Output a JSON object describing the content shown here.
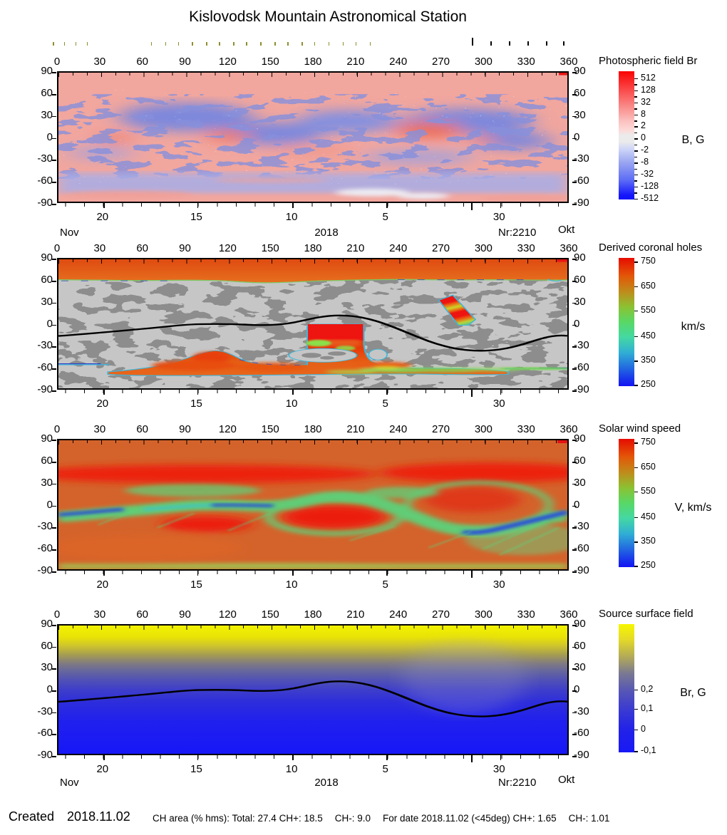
{
  "title": "Kislovodsk Mountain Astronomical Station",
  "axes": {
    "lon_ticks": [
      0,
      30,
      60,
      90,
      120,
      150,
      180,
      210,
      240,
      270,
      300,
      330,
      360
    ],
    "lat_ticks": [
      90,
      60,
      30,
      0,
      -30,
      -60,
      -90
    ],
    "date_ticks": [
      {
        "label": "20",
        "lon": 32
      },
      {
        "label": "15",
        "lon": 98
      },
      {
        "label": "10",
        "lon": 165
      },
      {
        "label": "5",
        "lon": 231
      },
      {
        "label": "30",
        "lon": 311
      }
    ],
    "month_tick_lon": 291,
    "left_month": "Nov",
    "year": "2018",
    "rotation": "Nr:2210",
    "right_month": "Okt"
  },
  "observation_ticks": {
    "olive_lons": [
      -3,
      5,
      13,
      21,
      66,
      76,
      85,
      95,
      105,
      114,
      124,
      133,
      143,
      153,
      162,
      172,
      181,
      191,
      201,
      210,
      220
    ],
    "black_lons": [
      292,
      305,
      318,
      331,
      344,
      356
    ],
    "tall_black_lon": 292
  },
  "panels": [
    {
      "name": "photospheric-field",
      "colorbar_title": "Photospheric field Br",
      "unit": "B, G",
      "colorbar": {
        "colors": [
          "#fa0404 0%",
          "#fb4242 13%",
          "#f98886 27%",
          "#fbc2c0 39%",
          "#fcdad8 46%",
          "#ebebeb 50%",
          "#ebebeb 55%",
          "#ccd4f8 61%",
          "#9aa6f0 71%",
          "#5c6cf6 85%",
          "#1414fb 97%"
        ],
        "ticks": [
          {
            "label": "512",
            "pct": 5.5
          },
          {
            "label": "128",
            "pct": 14.9
          },
          {
            "label": "32",
            "pct": 24.3
          },
          {
            "label": "8",
            "pct": 33.7
          },
          {
            "label": "2",
            "pct": 43.0
          },
          {
            "label": "0",
            "pct": 52.4
          },
          {
            "label": "-2",
            "pct": 61.8
          },
          {
            "label": "-8",
            "pct": 71.2
          },
          {
            "label": "-32",
            "pct": 80.5
          },
          {
            "label": "-128",
            "pct": 89.9
          },
          {
            "label": "-512",
            "pct": 99.3
          }
        ]
      }
    },
    {
      "name": "derived-coronal-holes",
      "colorbar_title": "Derived coronal holes",
      "unit": "km/s",
      "colorbar": {
        "colors": [
          "#e60c00 0%",
          "#e35708 14%",
          "#c08b1a 26%",
          "#8cc132 38%",
          "#58d866 50%",
          "#44d8a4 62%",
          "#30aed4 74%",
          "#2162e2 87%",
          "#1212f2 100%"
        ],
        "ticks": [
          {
            "label": "750",
            "pct": 3
          },
          {
            "label": "650",
            "pct": 22
          },
          {
            "label": "550",
            "pct": 41
          },
          {
            "label": "450",
            "pct": 61
          },
          {
            "label": "350",
            "pct": 80
          },
          {
            "label": "250",
            "pct": 99
          }
        ]
      }
    },
    {
      "name": "solar-wind-speed",
      "colorbar_title": "Solar wind speed",
      "unit": "V, km/s",
      "colorbar": {
        "colors": [
          "#e60c00 0%",
          "#e35708 14%",
          "#c08b1a 26%",
          "#8cc132 38%",
          "#58d866 50%",
          "#44d8a4 62%",
          "#30aed4 74%",
          "#2162e2 87%",
          "#1212f2 100%"
        ],
        "ticks": [
          {
            "label": "750",
            "pct": 3
          },
          {
            "label": "650",
            "pct": 22
          },
          {
            "label": "550",
            "pct": 41
          },
          {
            "label": "450",
            "pct": 61
          },
          {
            "label": "350",
            "pct": 80
          },
          {
            "label": "250",
            "pct": 99
          }
        ]
      }
    },
    {
      "name": "source-surface-field",
      "colorbar_title": "Source surface field",
      "unit": "Br, G",
      "colorbar": {
        "colors": [
          "#f6f600 0%",
          "#e4da28 12%",
          "#b0a85a 26%",
          "#7c7a90 38%",
          "#5656b6 52%",
          "#3838d4 68%",
          "#2222e8 82%",
          "#1818f6 100%"
        ],
        "ticks": [
          {
            "label": "0,2",
            "pct": 51
          },
          {
            "label": "0,1",
            "pct": 66
          },
          {
            "label": "0",
            "pct": 82
          },
          {
            "label": "-0,1",
            "pct": 99
          }
        ]
      }
    }
  ],
  "footer": {
    "created_label": "Created",
    "created_date": "2018.11.02",
    "stats": [
      "CH area (% hms): Total: 27.4 CH+: 18.5",
      "CH-: 9.0",
      "For date 2018.11.02 (<45deg) CH+: 1.65",
      "CH-: 1.01"
    ]
  },
  "chart_data": [
    {
      "type": "heatmap",
      "panel": "Photospheric field Br",
      "x_range": [
        0,
        360
      ],
      "y_range": [
        -90,
        90
      ],
      "x_ticks_top": [
        0,
        30,
        60,
        90,
        120,
        150,
        180,
        210,
        240,
        270,
        300,
        330,
        360
      ],
      "y_ticks": [
        90,
        60,
        30,
        0,
        -30,
        -60,
        -90
      ],
      "x_ticks_bottom_dates": [
        "20",
        "15",
        "10",
        "5",
        "30"
      ],
      "colorbar_unit": "B, G",
      "colorbar_ticks": [
        512,
        128,
        32,
        8,
        2,
        0,
        -2,
        -8,
        -32,
        -128,
        -512
      ],
      "scale": "symmetric log; red = positive field, blue = negative field, white near 0",
      "description": "Mottled synoptic map for Carrington rotation 2210 (20 Nov 2018 back to 30 Okt 2018). Weak positive (pink) field above +60 and at the very south edge; negative (blue) patches dominate mid-latitudes, strongest near lon 75-105 lat 10-40, lon 130-160 lat -10..20, lon 280-340 lat -5..40; smooth negative band near lat -55..-75; bright positive spots near lon 120 lat 0 and lon 255-270 lat 5."
    },
    {
      "type": "heatmap",
      "panel": "Derived coronal holes",
      "x_range": [
        0,
        360
      ],
      "y_range": [
        -90,
        90
      ],
      "colorbar_unit": "km/s",
      "colorbar_ticks": [
        750,
        650,
        550,
        450,
        350,
        250
      ],
      "features": [
        "north polar coronal hole above about +62 deg (orange, ~700 km/s)",
        "south polar coronal hole band below about -55 deg between lon 35 and 320, bulging up to lat -36 near lon 108",
        "equatorward extension at lon 176-216 reaching lat -3 (bright red, ~750 km/s)",
        "isolated elongated hole at lon 268-295, lat 0 to +35 (red/yellow/green stripes)",
        "small hole fragment at lon 355, lat 90",
        "quiet Sun light gray, closed-field mottling dark gray, cyan/blue contour outlines, green fringes near lat -60 at lon 200-310"
      ],
      "neutral_line": [
        [
          0,
          -17
        ],
        [
          30,
          -12
        ],
        [
          60,
          -7
        ],
        [
          90,
          -1
        ],
        [
          120,
          0
        ],
        [
          150,
          -2
        ],
        [
          180,
          8
        ],
        [
          195,
          12
        ],
        [
          210,
          10
        ],
        [
          240,
          -8
        ],
        [
          270,
          -30
        ],
        [
          290,
          -38
        ],
        [
          310,
          -36
        ],
        [
          330,
          -27
        ],
        [
          360,
          -17
        ]
      ]
    },
    {
      "type": "heatmap",
      "panel": "Solar wind speed",
      "x_range": [
        0,
        360
      ],
      "y_range": [
        -90,
        90
      ],
      "colorbar_unit": "V, km/s",
      "colorbar_ticks": [
        750,
        650,
        550,
        450,
        350,
        250
      ],
      "description": "Fast wind (red, >700 km/s) bands near lat 30-50 at lon 0-210 and 250-360, and blobs near lon 85-135 lat -25, lon 160-230 lat -18, lon 265-320 lat +10; slow wind channel (green-cyan-blue, 300-450 km/s) follows the current sheet from lat -15 at lon 0 up to +12 near lon 195 and down to -35 near lon 290-330; green streaky texture and greenish band along the south edge."
    },
    {
      "type": "heatmap",
      "panel": "Source surface field",
      "x_range": [
        0,
        360
      ],
      "y_range": [
        -90,
        90
      ],
      "colorbar_unit": "Br, G",
      "colorbar_ticks": [
        0.2,
        0.1,
        0,
        -0.1
      ],
      "description": "Smooth dipolar source-surface field: positive (yellow) north of the neutral line, negative (blue) to the south; black neutral line runs from lat -17 at lon 0, peaks at +12 near lon 195, dips to -38 near lon 290, returns to -17 at lon 360.",
      "neutral_line": [
        [
          0,
          -17
        ],
        [
          30,
          -12
        ],
        [
          60,
          -7
        ],
        [
          90,
          -1
        ],
        [
          120,
          0
        ],
        [
          150,
          -2
        ],
        [
          180,
          8
        ],
        [
          195,
          12
        ],
        [
          210,
          10
        ],
        [
          240,
          -8
        ],
        [
          270,
          -30
        ],
        [
          290,
          -38
        ],
        [
          310,
          -36
        ],
        [
          330,
          -27
        ],
        [
          360,
          -17
        ]
      ]
    }
  ]
}
